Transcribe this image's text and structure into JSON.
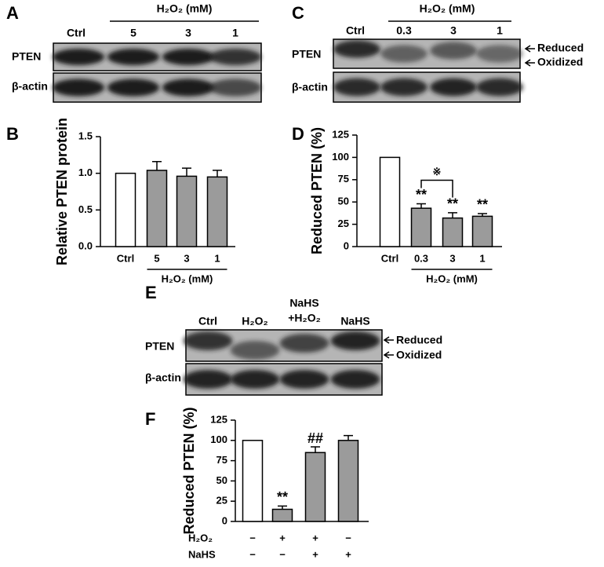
{
  "panels": [
    "A",
    "B",
    "C",
    "D",
    "E",
    "F"
  ],
  "blots": [
    {
      "header": "H₂O₂ (mM)",
      "lanes": [
        "Ctrl",
        "5",
        "3",
        "1"
      ],
      "rows": [
        "PTEN",
        "β-actin"
      ]
    },
    {
      "header": "H₂O₂ (mM)",
      "lanes": [
        "Ctrl",
        "0.3",
        "3",
        "1"
      ],
      "rows": [
        "PTEN",
        "β-actin"
      ],
      "arrows": [
        "Reduced",
        "Oxidized"
      ]
    },
    {
      "lanes": [
        [
          "Ctrl"
        ],
        [
          "H₂O₂"
        ],
        [
          "NaHS",
          "+H₂O₂"
        ],
        [
          "NaHS"
        ]
      ],
      "rows": [
        "PTEN",
        "β-actin"
      ],
      "arrows": [
        "Reduced",
        "Oxidized"
      ]
    }
  ],
  "chart_data": [
    {
      "type": "bar",
      "ylabel": "Relative PTEN protein",
      "categories": [
        "Ctrl",
        "5",
        "3",
        "1"
      ],
      "values": [
        1.0,
        1.04,
        0.96,
        0.95
      ],
      "errors": [
        null,
        0.12,
        0.11,
        0.09
      ],
      "colors": [
        "#ffffff",
        "#9b9b9b",
        "#9b9b9b",
        "#9b9b9b"
      ],
      "group_label": "H₂O₂ (mM)",
      "ylim": [
        0,
        1.5
      ],
      "yticks": [
        {
          "value": 0,
          "label": "0.0"
        },
        {
          "value": 0.5,
          "label": "0.5"
        },
        {
          "value": 1,
          "label": "1.0"
        },
        {
          "value": 1.5,
          "label": "1.5"
        }
      ]
    },
    {
      "type": "bar",
      "ylabel": "Reduced PTEN (%)",
      "categories": [
        "Ctrl",
        "0.3",
        "3",
        "1"
      ],
      "values": [
        100,
        43,
        32,
        34
      ],
      "errors": [
        null,
        5,
        6,
        3
      ],
      "colors": [
        "#ffffff",
        "#9b9b9b",
        "#9b9b9b",
        "#9b9b9b"
      ],
      "group_label": "H₂O₂ (mM)",
      "annotations": [
        null,
        "**",
        "**",
        "**"
      ],
      "bracket_label": "※",
      "ylim": [
        0,
        125
      ],
      "yticks": [
        0,
        25,
        50,
        75,
        100,
        125
      ]
    },
    {
      "type": "bar",
      "ylabel": "Reduced PTEN (%)",
      "categories": [
        null,
        null,
        null,
        null
      ],
      "values": [
        100,
        15,
        85,
        100
      ],
      "errors": [
        null,
        4,
        7,
        6
      ],
      "colors": [
        "#ffffff",
        "#9b9b9b",
        "#9b9b9b",
        "#9b9b9b"
      ],
      "annotations": [
        null,
        "**",
        "##",
        null
      ],
      "conditions": [
        {
          "name": "H₂O₂",
          "signs": [
            "−",
            "+",
            "+",
            "−"
          ]
        },
        {
          "name": "NaHS",
          "signs": [
            "−",
            "−",
            "+",
            "+"
          ]
        }
      ],
      "ylim": [
        0,
        125
      ],
      "yticks": [
        0,
        25,
        50,
        75,
        100,
        125
      ]
    }
  ]
}
